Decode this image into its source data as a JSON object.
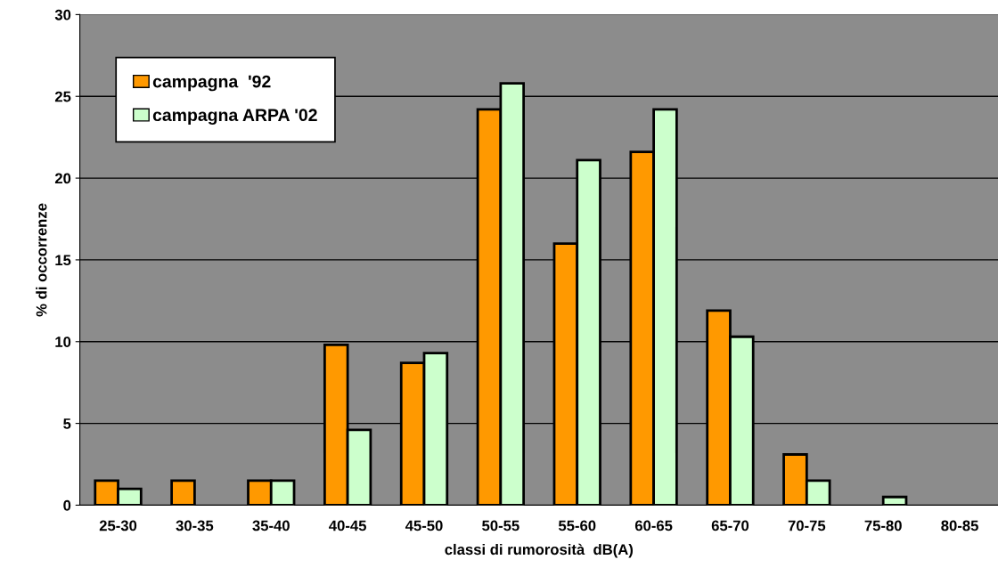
{
  "chart_data": {
    "type": "bar",
    "xlabel": "classi di rumorosità  dB(A)",
    "ylabel": "% di occorrenze",
    "categories": [
      "25-30",
      "30-35",
      "35-40",
      "40-45",
      "45-50",
      "50-55",
      "55-60",
      "60-65",
      "65-70",
      "70-75",
      "75-80",
      "80-85"
    ],
    "series": [
      {
        "name": "campagna  '92",
        "color": "#ff9900",
        "values": [
          1.5,
          1.5,
          1.5,
          9.8,
          8.7,
          24.2,
          16.0,
          21.6,
          11.9,
          3.1,
          0,
          0
        ]
      },
      {
        "name": "campagna ARPA '02",
        "color": "#ccffcc",
        "values": [
          1.0,
          0,
          1.5,
          4.6,
          9.3,
          25.8,
          21.1,
          24.2,
          10.3,
          1.5,
          0.5,
          0
        ]
      }
    ],
    "ylim": [
      0,
      30
    ],
    "yticks": [
      0,
      5,
      10,
      15,
      20,
      25,
      30
    ],
    "grid": "y",
    "legend": "top left"
  }
}
